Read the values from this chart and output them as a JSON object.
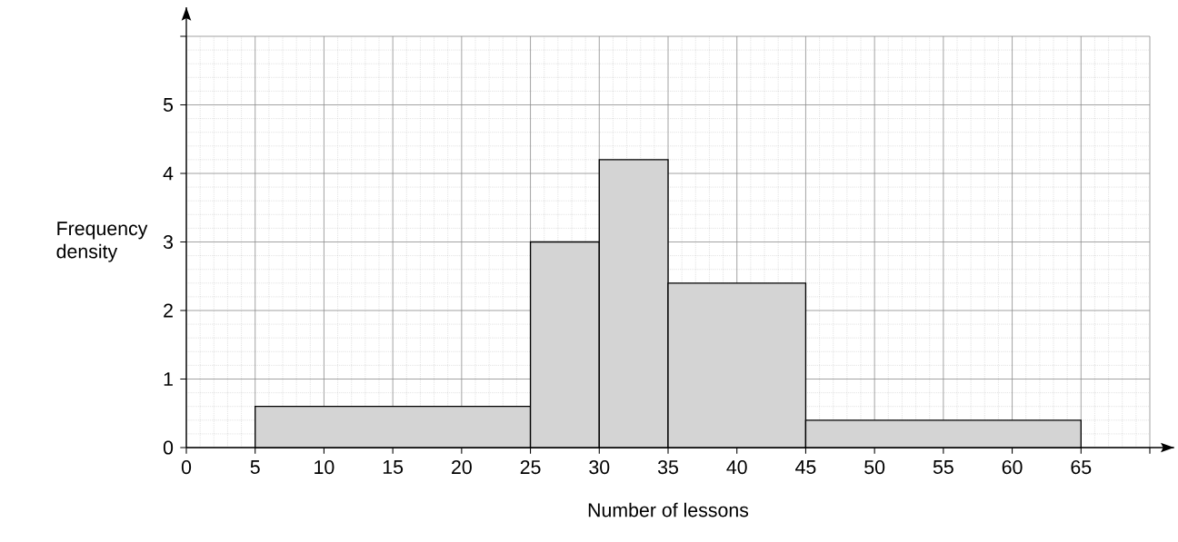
{
  "chart_data": {
    "type": "histogram",
    "bins": [
      5,
      25,
      30,
      35,
      45,
      65
    ],
    "values": [
      0.6,
      3,
      4.2,
      2.4,
      0.4
    ],
    "color": "#d4d4d4",
    "xlabel": "Number of lessons",
    "ylabel": "Frequency density",
    "xlim": [
      0,
      70
    ],
    "ylim": [
      0,
      6
    ],
    "xticks": [
      0,
      5,
      10,
      15,
      20,
      25,
      30,
      35,
      40,
      45,
      50,
      55,
      60,
      65,
      {
        "value": 70,
        "label": null
      }
    ],
    "yticks": [
      0,
      1,
      2,
      3,
      4,
      5,
      {
        "value": 6,
        "label": null
      }
    ],
    "grid": true
  }
}
